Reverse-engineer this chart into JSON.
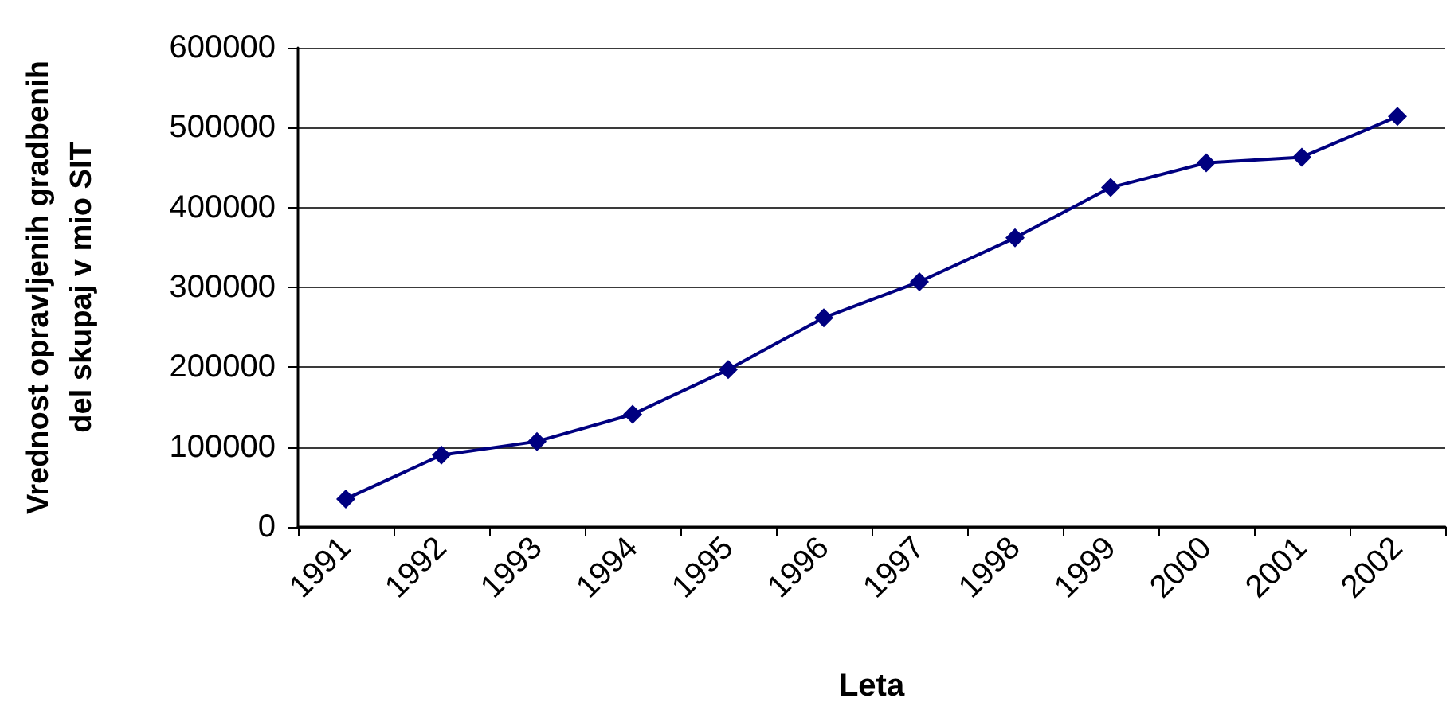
{
  "chart_data": {
    "type": "line",
    "xlabel": "Leta",
    "ylabel": "Vrednost opravljenih gradbenih del skupaj v mio SIT",
    "categories": [
      "1991",
      "1992",
      "1993",
      "1994",
      "1995",
      "1996",
      "1997",
      "1998",
      "1999",
      "2000",
      "2001",
      "2002"
    ],
    "series": [
      {
        "color": "#000080",
        "values": [
          35000,
          90000,
          107000,
          141000,
          197000,
          262000,
          307000,
          362000,
          425000,
          456000,
          463000,
          514000
        ]
      }
    ],
    "ylim": [
      0,
      600000
    ],
    "yticks": [
      0,
      100000,
      200000,
      300000,
      400000,
      500000,
      600000
    ],
    "grid": "y",
    "marker": "diamond",
    "line_style": "solid"
  }
}
